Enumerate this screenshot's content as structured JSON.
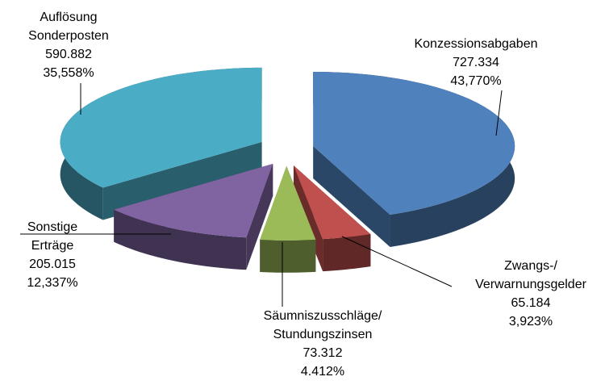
{
  "chart_data": {
    "type": "pie3d",
    "categories": [
      [
        "Konzessionsabgaben"
      ],
      [
        "Zwangs-/",
        "Verwarnungsgelder"
      ],
      [
        "Säumniszusschläge/",
        "Stundungszinsen"
      ],
      [
        "Sonstige",
        "Erträge"
      ],
      [
        "Auflösung",
        "Sonderposten"
      ]
    ],
    "values": [
      727334,
      65184,
      73312,
      205015,
      590882
    ],
    "value_labels": [
      "727.334",
      "65.184",
      "73.312",
      "205.015",
      "590.882"
    ],
    "percentages": [
      43.77,
      3.923,
      4.412,
      12.337,
      35.558
    ],
    "percentage_labels": [
      "43,770%",
      "3,923%",
      "4.412%",
      "12,337%",
      "35,558%"
    ],
    "colors": [
      "#4f81bd",
      "#c0504d",
      "#9bbb59",
      "#8064a2",
      "#4bacc6"
    ]
  }
}
